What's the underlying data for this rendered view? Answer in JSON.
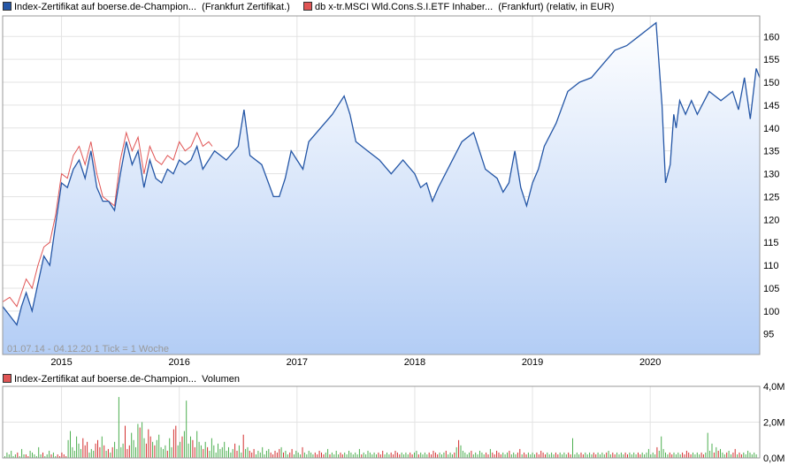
{
  "legend_top": [
    {
      "label": "Index-Zertifikat auf boerse.de-Champion...",
      "suffix": "(Frankfurt Zertifikat.)",
      "color": "#2456a6"
    },
    {
      "label": "db x-tr.MSCI Wld.Cons.S.I.ETF Inhaber...",
      "suffix": "(Frankfurt) (relativ, in EUR)",
      "color": "#e05555"
    }
  ],
  "legend_bottom": {
    "label": "Index-Zertifikat auf boerse.de-Champion...",
    "suffix": "Volumen",
    "color": "#e05555"
  },
  "range_caption": "01.07.14 - 04.12.20    1 Tick = 1 Woche",
  "chart_data": [
    {
      "type": "area",
      "x_ticks": [
        "2015",
        "2016",
        "2017",
        "2018",
        "2019",
        "2020"
      ],
      "y_ticks": [
        95,
        100,
        105,
        110,
        115,
        120,
        125,
        130,
        135,
        140,
        145,
        150,
        155,
        160
      ],
      "ylim": [
        90.5,
        164.5
      ],
      "xlim": [
        2014.5,
        2020.93
      ],
      "grid": true,
      "series": [
        {
          "name": "Index-Zertifikat auf boerse.de-Champion...",
          "color": "#2456a6",
          "x": [
            2014.5,
            2014.56,
            2014.62,
            2014.66,
            2014.7,
            2014.75,
            2014.8,
            2014.85,
            2014.9,
            2014.95,
            2015.0,
            2015.05,
            2015.1,
            2015.15,
            2015.2,
            2015.25,
            2015.3,
            2015.35,
            2015.4,
            2015.45,
            2015.5,
            2015.55,
            2015.6,
            2015.65,
            2015.7,
            2015.75,
            2015.8,
            2015.85,
            2015.9,
            2015.95,
            2016.0,
            2016.05,
            2016.1,
            2016.15,
            2016.2,
            2016.3,
            2016.4,
            2016.5,
            2016.55,
            2016.6,
            2016.7,
            2016.8,
            2016.85,
            2016.9,
            2016.95,
            2017.0,
            2017.05,
            2017.1,
            2017.2,
            2017.3,
            2017.4,
            2017.45,
            2017.5,
            2017.6,
            2017.7,
            2017.8,
            2017.9,
            2018.0,
            2018.05,
            2018.1,
            2018.15,
            2018.2,
            2018.3,
            2018.4,
            2018.5,
            2018.6,
            2018.7,
            2018.75,
            2018.8,
            2018.85,
            2018.9,
            2018.95,
            2019.0,
            2019.05,
            2019.1,
            2019.2,
            2019.3,
            2019.4,
            2019.5,
            2019.6,
            2019.7,
            2019.8,
            2019.9,
            2020.0,
            2020.05,
            2020.1,
            2020.13,
            2020.17,
            2020.2,
            2020.22,
            2020.25,
            2020.3,
            2020.35,
            2020.4,
            2020.5,
            2020.6,
            2020.7,
            2020.75,
            2020.8,
            2020.85,
            2020.9,
            2020.93
          ],
          "y": [
            101,
            99,
            97,
            101,
            104,
            100,
            106,
            112,
            110,
            119,
            128,
            127,
            131,
            133,
            129,
            135,
            127,
            124,
            124,
            122,
            130,
            137,
            132,
            135,
            127,
            133,
            129,
            128,
            131,
            130,
            133,
            132,
            133,
            136,
            131,
            135,
            133,
            136,
            144,
            134,
            132,
            125,
            125,
            129,
            135,
            133,
            131,
            137,
            140,
            143,
            147,
            143,
            137,
            135,
            133,
            130,
            133,
            130,
            127,
            128,
            124,
            127,
            132,
            137,
            139,
            131,
            129,
            126,
            128,
            135,
            127,
            123,
            128,
            131,
            136,
            141,
            148,
            150,
            151,
            154,
            157,
            158,
            160,
            162,
            163,
            145,
            128,
            132,
            143,
            140,
            146,
            143,
            146,
            143,
            148,
            146,
            148,
            144,
            151,
            142,
            153,
            151
          ],
          "markers": false
        },
        {
          "name": "db x-tr.MSCI Wld.Cons.S.I.ETF Inhaber...",
          "color": "#e05555",
          "x": [
            2014.5,
            2014.56,
            2014.62,
            2014.66,
            2014.7,
            2014.75,
            2014.8,
            2014.85,
            2014.9,
            2014.95,
            2015.0,
            2015.05,
            2015.1,
            2015.15,
            2015.2,
            2015.25,
            2015.3,
            2015.35,
            2015.4,
            2015.45,
            2015.5,
            2015.55,
            2015.6,
            2015.65,
            2015.7,
            2015.75,
            2015.8,
            2015.85,
            2015.9,
            2015.95,
            2016.0,
            2016.05,
            2016.1,
            2016.15,
            2016.2,
            2016.25,
            2016.28
          ],
          "y": [
            102,
            103,
            101,
            104,
            107,
            105,
            110,
            114,
            115,
            121,
            130,
            129,
            134,
            136,
            132,
            137,
            130,
            125,
            124,
            123,
            133,
            139,
            135,
            138,
            130,
            136,
            133,
            132,
            134,
            133,
            137,
            135,
            136,
            139,
            136,
            137,
            136
          ],
          "markers": false
        }
      ]
    },
    {
      "type": "bar",
      "title": "Volumen",
      "y_ticks": [
        "0,0M",
        "2,0M",
        "4,0M"
      ],
      "ylim": [
        0,
        4.0
      ],
      "values_M": [
        0.1,
        0.3,
        0.2,
        0.4,
        0.1,
        0.2,
        0.3,
        0.1,
        0.5,
        0.2,
        0.2,
        0.1,
        0.4,
        0.3,
        0.2,
        0.1,
        0.6,
        0.2,
        0.3,
        0.1,
        0.2,
        0.4,
        0.2,
        0.3,
        0.1,
        0.2,
        0.1,
        0.3,
        0.2,
        0.1,
        1.0,
        1.5,
        0.6,
        0.4,
        1.2,
        0.8,
        0.5,
        1.1,
        0.7,
        0.9,
        0.3,
        0.5,
        0.4,
        0.8,
        1.0,
        0.6,
        1.2,
        0.7,
        0.4,
        0.5,
        0.3,
        0.6,
        0.9,
        0.5,
        3.4,
        0.6,
        0.8,
        1.8,
        0.5,
        0.7,
        1.4,
        1.0,
        0.6,
        1.9,
        1.7,
        2.0,
        1.1,
        0.8,
        1.6,
        1.2,
        0.9,
        0.7,
        1.0,
        1.3,
        0.6,
        0.5,
        0.7,
        0.4,
        1.1,
        0.6,
        1.6,
        1.8,
        0.7,
        0.9,
        1.2,
        1.5,
        3.2,
        0.8,
        1.2,
        1.0,
        0.6,
        1.5,
        0.9,
        0.7,
        0.5,
        0.9,
        0.6,
        0.4,
        1.1,
        0.7,
        0.3,
        0.8,
        0.5,
        0.6,
        0.9,
        0.4,
        0.6,
        0.3,
        0.5,
        0.8,
        0.4,
        0.7,
        0.3,
        1.3,
        0.5,
        0.6,
        0.4,
        0.3,
        0.5,
        0.2,
        0.4,
        0.3,
        0.6,
        0.2,
        0.4,
        0.5,
        0.3,
        0.2,
        0.4,
        0.3,
        0.5,
        0.6,
        0.3,
        0.4,
        0.2,
        0.3,
        0.5,
        0.2,
        0.4,
        0.3,
        0.2,
        0.6,
        0.3,
        0.2,
        0.4,
        0.3,
        0.2,
        0.3,
        0.2,
        0.4,
        0.3,
        0.2,
        0.3,
        0.5,
        0.2,
        0.3,
        0.2,
        0.4,
        0.2,
        0.3,
        0.2,
        0.3,
        0.2,
        0.4,
        0.3,
        0.2,
        0.3,
        0.2,
        0.5,
        0.2,
        0.3,
        0.2,
        0.4,
        0.3,
        0.2,
        0.3,
        0.2,
        0.3,
        0.2,
        0.4,
        0.2,
        0.3,
        0.2,
        0.3,
        0.2,
        0.4,
        0.3,
        0.2,
        0.3,
        0.2,
        0.3,
        0.2,
        0.3,
        0.2,
        0.3,
        0.4,
        0.2,
        0.3,
        0.2,
        0.3,
        0.2,
        0.3,
        0.2,
        0.4,
        0.3,
        0.2,
        0.3,
        0.2,
        0.3,
        0.4,
        0.2,
        0.3,
        0.2,
        0.3,
        0.6,
        1.0,
        0.7,
        0.4,
        0.3,
        0.2,
        0.3,
        0.4,
        0.2,
        0.3,
        0.2,
        0.4,
        0.3,
        0.2,
        0.3,
        0.2,
        0.5,
        0.3,
        0.2,
        0.4,
        0.3,
        0.2,
        0.3,
        0.2,
        0.3,
        0.4,
        0.2,
        0.3,
        0.2,
        0.3,
        0.5,
        0.2,
        0.3,
        0.2,
        0.3,
        0.2,
        0.3,
        0.2,
        0.3,
        0.2,
        0.4,
        0.3,
        0.2,
        0.3,
        0.2,
        0.3,
        0.2,
        0.3,
        0.2,
        0.3,
        0.2,
        0.3,
        0.2,
        0.3,
        0.2,
        1.1,
        0.2,
        0.3,
        0.2,
        0.3,
        0.2,
        0.3,
        0.2,
        0.3,
        0.2,
        0.3,
        0.2,
        0.3,
        0.2,
        0.3,
        0.2,
        0.3,
        0.4,
        0.2,
        0.3,
        0.2,
        0.3,
        0.2,
        0.3,
        0.2,
        0.3,
        0.2,
        0.3,
        0.2,
        0.3,
        0.2,
        0.3,
        0.2,
        0.3,
        0.2,
        0.3,
        0.5,
        0.2,
        0.3,
        0.2,
        0.6,
        0.4,
        1.2,
        0.5,
        0.3,
        0.2,
        0.3,
        0.2,
        0.3,
        0.2,
        0.3,
        0.2,
        0.3,
        0.2,
        0.4,
        0.3,
        0.2,
        0.3,
        0.2,
        0.3,
        0.2,
        0.3,
        0.2,
        0.3,
        1.4,
        0.4,
        0.8,
        0.3,
        0.6,
        0.4,
        0.5,
        0.3,
        0.2,
        0.3,
        0.4,
        0.2,
        0.3,
        0.5,
        0.2,
        0.3,
        0.2,
        0.3,
        0.2,
        0.4,
        0.3,
        0.2,
        0.3,
        0.2
      ],
      "colors": {
        "up": "#4caf50",
        "down": "#d32f2f"
      }
    }
  ]
}
